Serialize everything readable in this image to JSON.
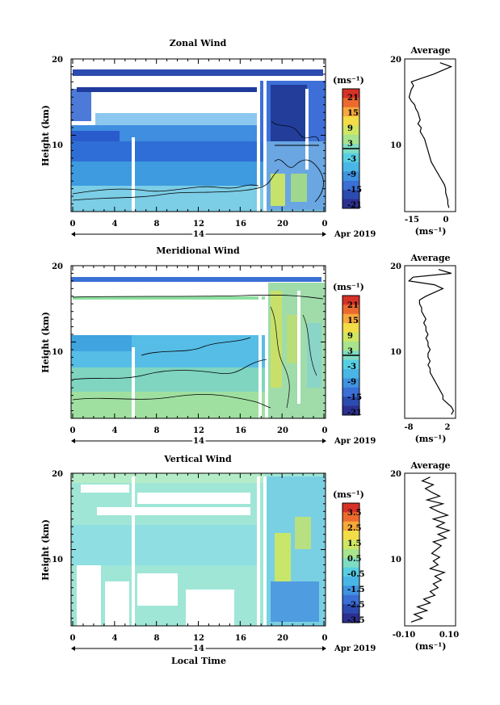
{
  "chart_data": [
    {
      "type": "heatmap",
      "title": "Zonal Wind",
      "ylabel": "Height (km)",
      "ylim": [
        0,
        20
      ],
      "x_ticks": [
        "0",
        "4",
        "8",
        "12",
        "16",
        "20",
        "0"
      ],
      "y_ticks": [
        "20",
        "10"
      ],
      "date_label": "14",
      "date_suffix": "Apr 2019",
      "colorbar_unit": "(ms⁻¹)",
      "colorbar_ticks": [
        "21",
        "15",
        "9",
        "3",
        "-3",
        "-9",
        "-15",
        "-21"
      ],
      "colorbar_range": [
        -24,
        24
      ],
      "zero_line": true,
      "average": {
        "title": "Average",
        "xlabel": "(ms⁻¹)",
        "x_ticks": [
          "-15",
          "0"
        ],
        "xlim": [
          -20,
          3
        ],
        "y_ticks": [
          "20",
          "10"
        ],
        "heights_km": [
          0.5,
          1,
          1.5,
          2,
          2.5,
          3,
          3.5,
          4,
          4.5,
          5,
          5.5,
          6,
          6.5,
          7,
          7.5,
          8,
          8.5,
          9,
          9.5,
          10,
          10.5,
          11,
          11.5,
          12,
          12.5,
          13,
          13.5,
          14,
          14.5,
          15,
          15.5,
          16,
          16.5,
          17,
          17.5,
          18,
          18.5,
          19,
          19.5
        ],
        "values_ms": [
          0,
          -0.5,
          -0.5,
          -1,
          -1.5,
          -1.5,
          -2,
          -3,
          -4,
          -5,
          -6,
          -7,
          -8,
          -8.5,
          -9,
          -9.5,
          -10,
          -10.5,
          -11,
          -12,
          -13,
          -12.5,
          -14,
          -13,
          -13.5,
          -14,
          -15,
          -15.5,
          -17,
          -18,
          -17.5,
          -17,
          -16,
          -17,
          -12,
          -7,
          -3,
          1,
          -4
        ]
      }
    },
    {
      "type": "heatmap",
      "title": "Meridional Wind",
      "ylabel": "Height (km)",
      "ylim": [
        0,
        20
      ],
      "x_ticks": [
        "0",
        "4",
        "8",
        "12",
        "16",
        "20",
        "0"
      ],
      "y_ticks": [
        "20",
        "10"
      ],
      "date_label": "14",
      "date_suffix": "Apr 2019",
      "colorbar_unit": "(ms⁻¹)",
      "colorbar_ticks": [
        "21",
        "15",
        "9",
        "3",
        "-3",
        "-9",
        "-15",
        "-21"
      ],
      "colorbar_range": [
        -24,
        24
      ],
      "zero_line": true,
      "average": {
        "title": "Average",
        "xlabel": "(ms⁻¹)",
        "x_ticks": [
          "-8",
          "2"
        ],
        "xlim": [
          -9,
          3
        ],
        "y_ticks": [
          "20",
          "10"
        ],
        "heights_km": [
          0.5,
          1,
          1.5,
          2,
          2.5,
          3,
          3.5,
          4,
          4.5,
          5,
          5.5,
          6,
          6.5,
          7,
          7.5,
          8,
          8.5,
          9,
          9.5,
          10,
          10.5,
          11,
          11.5,
          12,
          12.5,
          13,
          13.5,
          14,
          14.5,
          15,
          15.5,
          16,
          16.5,
          17,
          17.5,
          18,
          18.5,
          19,
          19.5
        ],
        "values_ms": [
          2,
          2.5,
          2,
          1,
          0,
          0,
          -0.5,
          -1,
          -1.5,
          -2,
          -2.5,
          -3,
          -3,
          -3.5,
          -3,
          -3.5,
          -3.5,
          -3,
          -3.5,
          -3.5,
          -4,
          -3.5,
          -4,
          -4,
          -4.5,
          -4,
          -4.5,
          -5,
          -5,
          -5.5,
          -5.5,
          -4,
          -2,
          0,
          -2,
          -8,
          -7,
          2,
          -1
        ]
      }
    },
    {
      "type": "heatmap",
      "title": "Vertical Wind",
      "ylabel": "Height (km)",
      "xlabel": "Local Time",
      "ylim": [
        0,
        20
      ],
      "x_ticks": [
        "0",
        "4",
        "8",
        "12",
        "16",
        "20",
        "0"
      ],
      "y_ticks": [
        "20",
        "10"
      ],
      "date_label": "14",
      "date_suffix": "Apr 2019",
      "colorbar_unit": "(ms⁻¹)",
      "colorbar_ticks": [
        "3.5",
        "2.5",
        "1.5",
        "0.5",
        "-0.5",
        "-1.5",
        "-2.5",
        "-3.5"
      ],
      "colorbar_range": [
        -4,
        4
      ],
      "zero_line": false,
      "average": {
        "title": "Average",
        "xlabel": "(ms⁻¹)",
        "x_ticks": [
          "-0.10",
          "0.10"
        ],
        "xlim": [
          -0.16,
          0.16
        ],
        "y_ticks": [
          "20",
          "10"
        ],
        "heights_km": [
          0.5,
          1,
          1.5,
          2,
          2.5,
          3,
          3.5,
          4,
          4.5,
          5,
          5.5,
          6,
          6.5,
          7,
          7.5,
          8,
          8.5,
          9,
          9.5,
          10,
          10.5,
          11,
          11.5,
          12,
          12.5,
          13,
          13.5,
          14,
          14.5,
          15,
          15.5,
          16,
          16.5,
          17,
          17.5,
          18,
          18.5,
          19,
          19.5
        ],
        "values_ms": [
          -0.12,
          -0.05,
          -0.1,
          -0.02,
          -0.08,
          0.0,
          -0.04,
          0.03,
          0.0,
          0.05,
          0.02,
          0.07,
          0.03,
          0.09,
          0.0,
          0.05,
          0.02,
          0.06,
          0.01,
          0.04,
          0.07,
          0.02,
          0.1,
          0.05,
          0.12,
          0.04,
          0.09,
          0.02,
          0.11,
          0.05,
          0.0,
          0.08,
          -0.02,
          0.06,
          0.01,
          -0.03,
          0.02,
          -0.05,
          0.0
        ]
      }
    }
  ]
}
